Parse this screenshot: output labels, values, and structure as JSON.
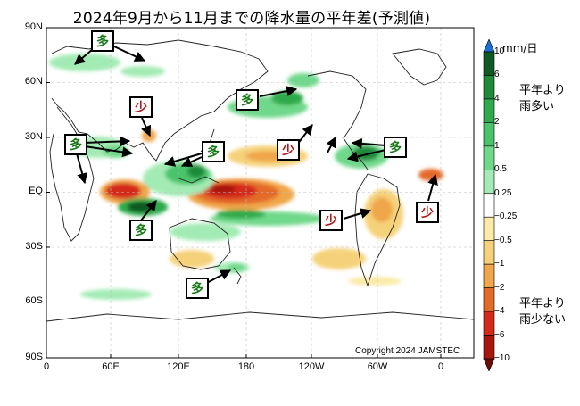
{
  "title": "2024年9月から11月までの降水量の平年差(予測値)",
  "map": {
    "lat_ticks": [
      "90N",
      "60N",
      "30N",
      "EQ",
      "30S",
      "60S",
      "90S"
    ],
    "lon_ticks": [
      "0",
      "60E",
      "120E",
      "180",
      "120W",
      "60W",
      "0"
    ],
    "copyright": "Copyright 2024 JAMSTEC"
  },
  "legend": {
    "unit": "mm/日",
    "wet_note_line1": "平年より",
    "wet_note_line2": "雨多い",
    "dry_note_line1": "平年より",
    "dry_note_line2": "雨少ない",
    "levels": [
      "10",
      "6",
      "4",
      "2",
      "1",
      "0.5",
      "0.25",
      "−0.25",
      "−0.5",
      "−1",
      "−2",
      "−4",
      "−6",
      "−10"
    ],
    "colors": [
      "#1a6fd8",
      "#0e5a22",
      "#1f8a3a",
      "#2faa4c",
      "#49c46a",
      "#6fd88a",
      "#a3ebb4",
      "#ffffff",
      "#fbeaa8",
      "#f5d27a",
      "#f0a64a",
      "#e46a2a",
      "#d42a1c",
      "#a8170e",
      "#6a0e08"
    ]
  },
  "annotations": [
    {
      "label": "多",
      "kind": "wet",
      "region": "Northern Europe / Russia"
    },
    {
      "label": "少",
      "kind": "dry",
      "region": "South Asia"
    },
    {
      "label": "多",
      "kind": "wet",
      "region": "Northern Pacific"
    },
    {
      "label": "多",
      "kind": "wet",
      "region": "Arabia / East Africa"
    },
    {
      "label": "多",
      "kind": "wet",
      "region": "Southeast Asia"
    },
    {
      "label": "少",
      "kind": "dry",
      "region": "Central Pacific"
    },
    {
      "label": "多",
      "kind": "wet",
      "region": "Caribbean"
    },
    {
      "label": "多",
      "kind": "wet",
      "region": "Indian Ocean"
    },
    {
      "label": "少",
      "kind": "dry",
      "region": "South America"
    },
    {
      "label": "少",
      "kind": "dry",
      "region": "Eastern Atlantic"
    },
    {
      "label": "多",
      "kind": "wet",
      "region": "New Zealand"
    }
  ]
}
